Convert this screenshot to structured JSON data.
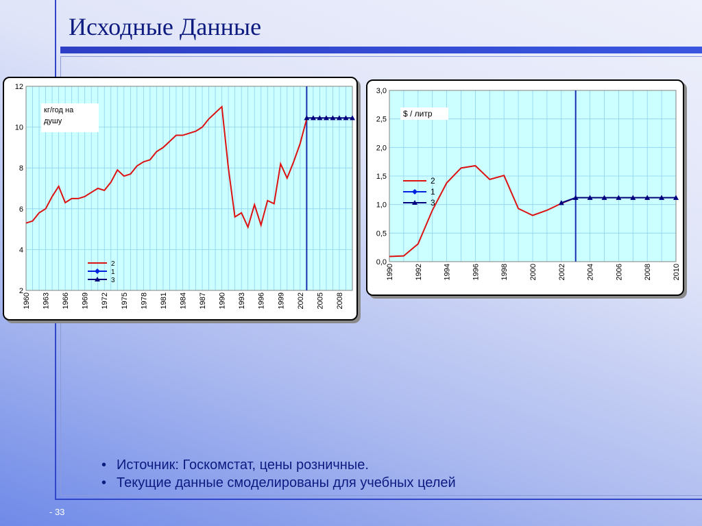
{
  "slide": {
    "title": "Исходные Данные",
    "bullets": [
      "Источник: Госкомстат, цены розничные.",
      "Текущие данные смоделированы для учебных целей"
    ],
    "page_number": "- 33"
  },
  "colors": {
    "title_text": "#0d1a80",
    "accent_bar": "#3145c8",
    "plot_bg": "#ccffff",
    "grid": "#8fd0f0",
    "series_2": "#dd1111",
    "series_1": "#0022dd",
    "series_3": "#00007f",
    "divider": "#1a2fb0"
  },
  "chart_data": [
    {
      "type": "line",
      "title": "",
      "annotation": "кг/год на душу",
      "xlabel": "",
      "ylabel": "",
      "xlim": [
        1960,
        2010
      ],
      "ylim": [
        2,
        12
      ],
      "y_ticks": [
        2,
        4,
        6,
        8,
        10,
        12
      ],
      "x_ticks": [
        1960,
        1963,
        1966,
        1969,
        1972,
        1975,
        1978,
        1981,
        1984,
        1987,
        1990,
        1993,
        1996,
        1999,
        2002,
        2005,
        2008
      ],
      "grid": true,
      "legend_position": "bottom-left",
      "divider_x": 2003,
      "series": [
        {
          "name": "2",
          "x": [
            1960,
            1961,
            1962,
            1963,
            1964,
            1965,
            1966,
            1967,
            1968,
            1969,
            1970,
            1971,
            1972,
            1973,
            1974,
            1975,
            1976,
            1977,
            1978,
            1979,
            1980,
            1981,
            1982,
            1983,
            1984,
            1985,
            1986,
            1987,
            1988,
            1989,
            1990,
            1991,
            1992,
            1993,
            1994,
            1995,
            1996,
            1997,
            1998,
            1999,
            2000,
            2001,
            2002,
            2003
          ],
          "values": [
            5.3,
            5.4,
            5.8,
            6.0,
            6.6,
            7.1,
            6.3,
            6.5,
            6.5,
            6.6,
            6.8,
            7.0,
            6.9,
            7.3,
            7.9,
            7.6,
            7.7,
            8.1,
            8.3,
            8.4,
            8.8,
            9.0,
            9.3,
            9.6,
            9.6,
            9.7,
            9.8,
            10.0,
            10.4,
            10.7,
            11.0,
            8.0,
            5.6,
            5.8,
            5.1,
            6.2,
            5.2,
            6.4,
            6.25,
            8.2,
            7.5,
            8.3,
            9.2,
            10.4
          ]
        },
        {
          "name": "1",
          "x": [],
          "values": []
        },
        {
          "name": "3",
          "x": [
            2003,
            2004,
            2005,
            2006,
            2007,
            2008,
            2009,
            2010
          ],
          "values": [
            10.45,
            10.45,
            10.45,
            10.45,
            10.45,
            10.45,
            10.45,
            10.45
          ]
        }
      ]
    },
    {
      "type": "line",
      "title": "",
      "annotation": "$ / литр",
      "xlabel": "",
      "ylabel": "",
      "xlim": [
        1990,
        2010
      ],
      "ylim": [
        0,
        3
      ],
      "y_ticks": [
        "0,0",
        "0,5",
        "1,0",
        "1,5",
        "2,0",
        "2,5",
        "3,0"
      ],
      "x_ticks": [
        1990,
        1992,
        1994,
        1996,
        1998,
        2000,
        2002,
        2004,
        2006,
        2008,
        2010
      ],
      "grid": true,
      "legend_position": "left",
      "divider_x": 2003,
      "series": [
        {
          "name": "2",
          "x": [
            1990,
            1991,
            1992,
            1993,
            1994,
            1995,
            1996,
            1997,
            1998,
            1999,
            2000,
            2001,
            2002,
            2003
          ],
          "values": [
            0.09,
            0.1,
            0.31,
            0.9,
            1.38,
            1.64,
            1.68,
            1.44,
            1.51,
            0.93,
            0.81,
            0.9,
            1.02,
            1.12
          ]
        },
        {
          "name": "1",
          "x": [],
          "values": []
        },
        {
          "name": "3",
          "x": [
            2002,
            2003,
            2004,
            2005,
            2006,
            2007,
            2008,
            2009,
            2010
          ],
          "values": [
            1.03,
            1.12,
            1.12,
            1.12,
            1.12,
            1.12,
            1.12,
            1.12,
            1.12
          ]
        }
      ]
    }
  ]
}
